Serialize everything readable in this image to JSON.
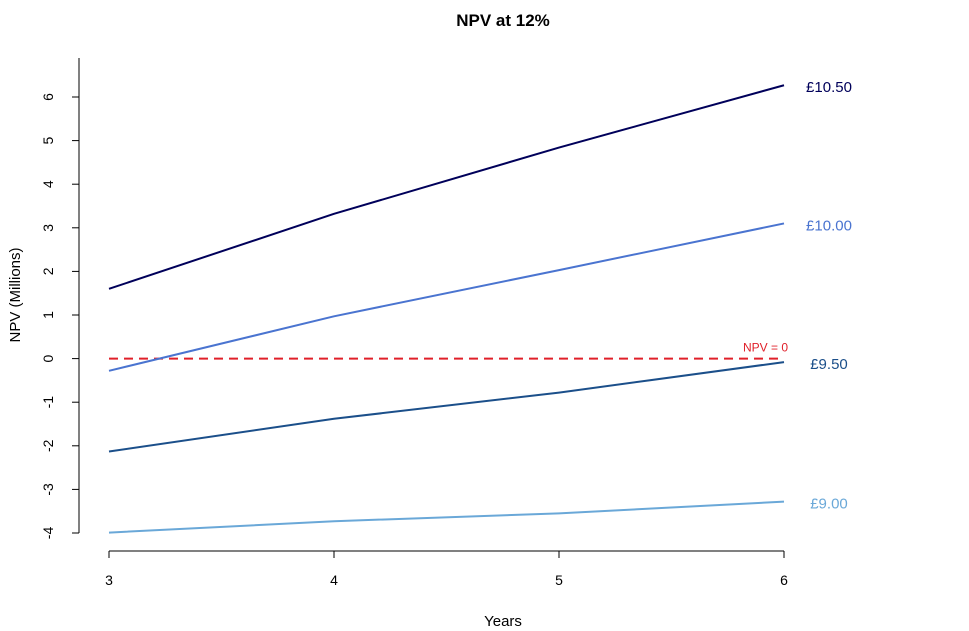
{
  "chart_data": {
    "type": "line",
    "title": "NPV at 12%",
    "xlabel": "Years",
    "ylabel": "NPV (Millions)",
    "x": [
      3,
      4,
      5,
      6
    ],
    "xlim": [
      3,
      6
    ],
    "ylim": [
      -4,
      6
    ],
    "xticks": [
      "3",
      "4",
      "5",
      "6"
    ],
    "yticks": [
      "-4",
      "-3",
      "-2",
      "-1",
      "0",
      "1",
      "2",
      "3",
      "4",
      "5",
      "6"
    ],
    "grid": false,
    "series": [
      {
        "name": "£10.50",
        "color": "#00005a",
        "values": [
          1.6,
          3.32,
          4.84,
          6.27
        ]
      },
      {
        "name": "£10.00",
        "color": "#4a74d0",
        "values": [
          -0.28,
          0.97,
          2.03,
          3.1
        ]
      },
      {
        "name": "£9.50",
        "color": "#1b4f8a",
        "values": [
          -2.13,
          -1.38,
          -0.78,
          -0.08
        ]
      },
      {
        "name": "£9.00",
        "color": "#6aa8d8",
        "values": [
          -3.99,
          -3.73,
          -3.55,
          -3.28
        ]
      }
    ],
    "reference_line": {
      "y": 0,
      "label": "NPV = 0",
      "color": "#e0202a",
      "style": "dashed"
    }
  }
}
